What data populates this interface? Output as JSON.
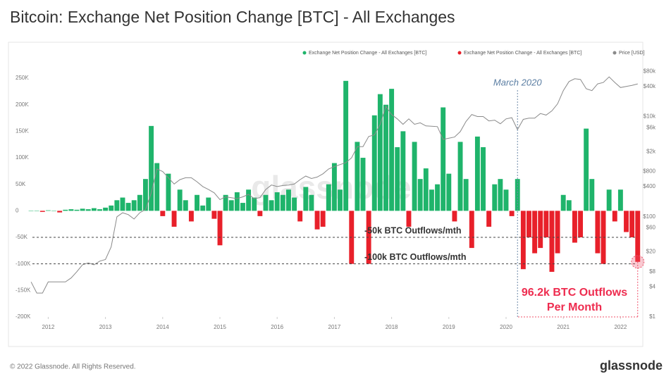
{
  "chart_data": {
    "type": "bar",
    "title": "Bitcoin: Exchange Net Position Change [BTC] - All Exchanges",
    "watermark": "glassnode",
    "legend": "top-right",
    "x": [
      2011.7,
      2011.8,
      2011.9,
      2012.0,
      2012.1,
      2012.2,
      2012.3,
      2012.4,
      2012.5,
      2012.6,
      2012.7,
      2012.8,
      2012.9,
      2013.0,
      2013.1,
      2013.2,
      2013.3,
      2013.4,
      2013.5,
      2013.6,
      2013.7,
      2013.8,
      2013.9,
      2014.0,
      2014.1,
      2014.2,
      2014.3,
      2014.4,
      2014.5,
      2014.6,
      2014.7,
      2014.8,
      2014.9,
      2015.0,
      2015.1,
      2015.2,
      2015.3,
      2015.4,
      2015.5,
      2015.6,
      2015.7,
      2015.8,
      2015.9,
      2016.0,
      2016.1,
      2016.2,
      2016.3,
      2016.4,
      2016.5,
      2016.6,
      2016.7,
      2016.8,
      2016.9,
      2017.0,
      2017.1,
      2017.2,
      2017.3,
      2017.4,
      2017.5,
      2017.6,
      2017.7,
      2017.8,
      2017.9,
      2018.0,
      2018.1,
      2018.2,
      2018.3,
      2018.4,
      2018.5,
      2018.6,
      2018.7,
      2018.8,
      2018.9,
      2019.0,
      2019.1,
      2019.2,
      2019.3,
      2019.4,
      2019.5,
      2019.6,
      2019.7,
      2019.8,
      2019.9,
      2020.0,
      2020.1,
      2020.2,
      2020.3,
      2020.4,
      2020.5,
      2020.6,
      2020.7,
      2020.8,
      2020.9,
      2021.0,
      2021.1,
      2021.2,
      2021.3,
      2021.4,
      2021.5,
      2021.6,
      2021.7,
      2021.8,
      2021.9,
      2022.0,
      2022.1,
      2022.2,
      2022.3
    ],
    "xlim": [
      2011.65,
      2022.34
    ],
    "xticks": [
      2012,
      2013,
      2014,
      2015,
      2016,
      2017,
      2018,
      2019,
      2020,
      2021,
      2022
    ],
    "ylim": [
      -200000,
      270000
    ],
    "yticks": [
      {
        "value": 250000,
        "label": "250K"
      },
      {
        "value": 200000,
        "label": "200K"
      },
      {
        "value": 150000,
        "label": "150K"
      },
      {
        "value": 100000,
        "label": "100K"
      },
      {
        "value": 50000,
        "label": "50K"
      },
      0,
      {
        "value": -50000,
        "label": "-50K"
      },
      {
        "value": -100000,
        "label": "-100K"
      },
      {
        "value": -150000,
        "label": "-150K"
      },
      {
        "value": -200000,
        "label": "-200K"
      }
    ],
    "y2lim": [
      1,
      95000
    ],
    "y2scale": "log",
    "y2ticks": [
      {
        "value": 80000,
        "label": "$80k"
      },
      {
        "value": 40000,
        "label": "$40k"
      },
      {
        "value": 10000,
        "label": "$10k"
      },
      {
        "value": 6000,
        "label": "$6k"
      },
      {
        "value": 2000,
        "label": "$2k"
      },
      {
        "value": 800,
        "label": "$800"
      },
      {
        "value": 400,
        "label": "$400"
      },
      {
        "value": 100,
        "label": "$100"
      },
      {
        "value": 60,
        "label": "$60"
      },
      {
        "value": 20,
        "label": "$20"
      },
      {
        "value": 8,
        "label": "$8"
      },
      {
        "value": 4,
        "label": "$4"
      },
      {
        "value": 1,
        "label": "$1"
      }
    ],
    "series": [
      {
        "name": "Exchange Net Position Change - All Exchanges [BTC]",
        "color": "#1fb46b",
        "values": [
          0,
          0,
          null,
          1000,
          0,
          null,
          2000,
          3000,
          2000,
          4000,
          3000,
          5000,
          3000,
          6000,
          10000,
          20000,
          25000,
          15000,
          20000,
          30000,
          60000,
          160000,
          90000,
          null,
          70000,
          null,
          40000,
          20000,
          null,
          30000,
          10000,
          25000,
          null,
          null,
          30000,
          20000,
          35000,
          15000,
          40000,
          25000,
          null,
          30000,
          20000,
          35000,
          30000,
          40000,
          25000,
          null,
          45000,
          30000,
          null,
          null,
          50000,
          90000,
          40000,
          245000,
          null,
          130000,
          100000,
          null,
          180000,
          220000,
          200000,
          230000,
          120000,
          150000,
          null,
          130000,
          60000,
          80000,
          40000,
          50000,
          195000,
          70000,
          null,
          130000,
          60000,
          null,
          140000,
          120000,
          null,
          50000,
          60000,
          40000,
          null,
          60000,
          null,
          null,
          null,
          null,
          null,
          null,
          null,
          30000,
          20000,
          null,
          null,
          155000,
          60000,
          null,
          null,
          40000,
          null,
          40000,
          null,
          null,
          null
        ]
      },
      {
        "name": "Exchange Net Position Change - All Exchanges [BTC]",
        "color": "#e8202a",
        "values": [
          null,
          null,
          -2000,
          null,
          null,
          -3000,
          null,
          null,
          null,
          null,
          null,
          null,
          null,
          null,
          null,
          null,
          null,
          null,
          null,
          null,
          null,
          null,
          null,
          -10000,
          null,
          -30000,
          null,
          null,
          -20000,
          null,
          null,
          null,
          -15000,
          -65000,
          null,
          null,
          null,
          null,
          null,
          null,
          -10000,
          null,
          null,
          null,
          null,
          null,
          null,
          -20000,
          null,
          null,
          -35000,
          -30000,
          null,
          null,
          null,
          null,
          -100000,
          null,
          null,
          -100000,
          null,
          null,
          null,
          null,
          null,
          null,
          -30000,
          null,
          null,
          null,
          null,
          null,
          null,
          null,
          -20000,
          null,
          null,
          -70000,
          null,
          null,
          -30000,
          null,
          null,
          null,
          -10000,
          null,
          -110000,
          -50000,
          -80000,
          -70000,
          -50000,
          -115000,
          -80000,
          null,
          null,
          -60000,
          -50000,
          null,
          null,
          -80000,
          -100000,
          null,
          -20000,
          null,
          -40000,
          -50000,
          -96200
        ]
      },
      {
        "name": "Price [USD]",
        "color": "#8a8a8a",
        "type": "line",
        "axis": "y2",
        "values": [
          5,
          3,
          3,
          5,
          5,
          5,
          5,
          6,
          8,
          11,
          12,
          11,
          13,
          14,
          25,
          100,
          120,
          110,
          90,
          120,
          140,
          300,
          900,
          800,
          600,
          450,
          550,
          600,
          600,
          500,
          400,
          350,
          300,
          220,
          250,
          240,
          230,
          250,
          280,
          230,
          240,
          350,
          430,
          400,
          420,
          430,
          450,
          550,
          650,
          580,
          620,
          720,
          900,
          1000,
          1100,
          1200,
          1500,
          2500,
          2500,
          4000,
          4300,
          7000,
          16000,
          11000,
          9000,
          7000,
          9000,
          7000,
          7500,
          6500,
          6400,
          6300,
          3500,
          3700,
          3900,
          5000,
          8000,
          11000,
          10000,
          10000,
          8200,
          8500,
          7200,
          9000,
          9500,
          5500,
          8800,
          9300,
          9300,
          11500,
          10700,
          13000,
          18000,
          33000,
          50000,
          57000,
          55000,
          36000,
          33000,
          45000,
          48000,
          62000,
          48000,
          38000,
          40000,
          42000,
          45000
        ]
      }
    ],
    "annotations": [
      {
        "text": "March 2020",
        "x": 2020.2
      },
      {
        "text": "-50k BTC Outflows/mth",
        "y": -50000
      },
      {
        "text": "-100k BTC Outflows/mth",
        "y": -100000
      },
      {
        "lines": [
          "96.2k BTC Outflows",
          "Per Month"
        ],
        "x": 2022.3,
        "y": -96200
      }
    ]
  },
  "footer": {
    "copyright": "© 2022 Glassnode. All Rights Reserved.",
    "brand": "glassnode"
  }
}
